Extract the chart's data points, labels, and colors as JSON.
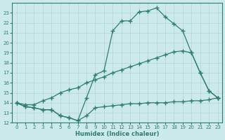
{
  "line1_x": [
    0,
    1,
    2,
    3,
    4,
    5,
    6,
    7,
    8,
    9,
    10,
    11,
    12,
    13,
    14,
    15,
    16,
    17,
    18,
    19,
    20,
    21,
    22,
    23
  ],
  "line1_y": [
    14.0,
    13.6,
    13.5,
    13.3,
    13.3,
    12.7,
    12.5,
    12.2,
    14.5,
    16.8,
    17.2,
    21.2,
    22.2,
    22.2,
    23.1,
    23.2,
    23.5,
    22.6,
    21.9,
    21.2,
    19.0,
    17.0,
    15.2,
    14.5
  ],
  "line2_x": [
    0,
    1,
    2,
    3,
    4,
    5,
    6,
    7,
    8,
    9,
    10,
    11,
    12,
    13,
    14,
    15,
    16,
    17,
    18,
    19,
    20,
    21,
    22,
    23
  ],
  "line2_y": [
    14.0,
    13.8,
    13.8,
    14.2,
    14.5,
    15.0,
    15.3,
    15.5,
    16.0,
    16.3,
    16.6,
    17.0,
    17.3,
    17.6,
    17.9,
    18.2,
    18.5,
    18.8,
    19.1,
    19.2,
    19.0,
    17.0,
    15.2,
    14.5
  ],
  "line3_x": [
    0,
    1,
    2,
    3,
    4,
    5,
    6,
    7,
    8,
    9,
    10,
    11,
    12,
    13,
    14,
    15,
    16,
    17,
    18,
    19,
    20,
    21,
    22,
    23
  ],
  "line3_y": [
    14.0,
    13.6,
    13.5,
    13.3,
    13.3,
    12.7,
    12.5,
    12.2,
    12.7,
    13.5,
    13.6,
    13.7,
    13.8,
    13.9,
    13.9,
    14.0,
    14.0,
    14.0,
    14.1,
    14.1,
    14.2,
    14.2,
    14.3,
    14.5
  ],
  "line_color": "#2e7d6e",
  "bg_color": "#cdeaea",
  "grid_color": "#afd4d4",
  "axis_color": "#2e7d6e",
  "xlabel": "Humidex (Indice chaleur)",
  "xlim": [
    -0.5,
    23.5
  ],
  "ylim": [
    12,
    24.0
  ],
  "xticks": [
    0,
    1,
    2,
    3,
    4,
    5,
    6,
    7,
    8,
    9,
    10,
    11,
    12,
    13,
    14,
    15,
    16,
    17,
    18,
    19,
    20,
    21,
    22,
    23
  ],
  "yticks": [
    12,
    13,
    14,
    15,
    16,
    17,
    18,
    19,
    20,
    21,
    22,
    23
  ],
  "marker": "+",
  "marker_size": 4,
  "linewidth": 0.9,
  "xlabel_fontsize": 6,
  "tick_fontsize": 5
}
